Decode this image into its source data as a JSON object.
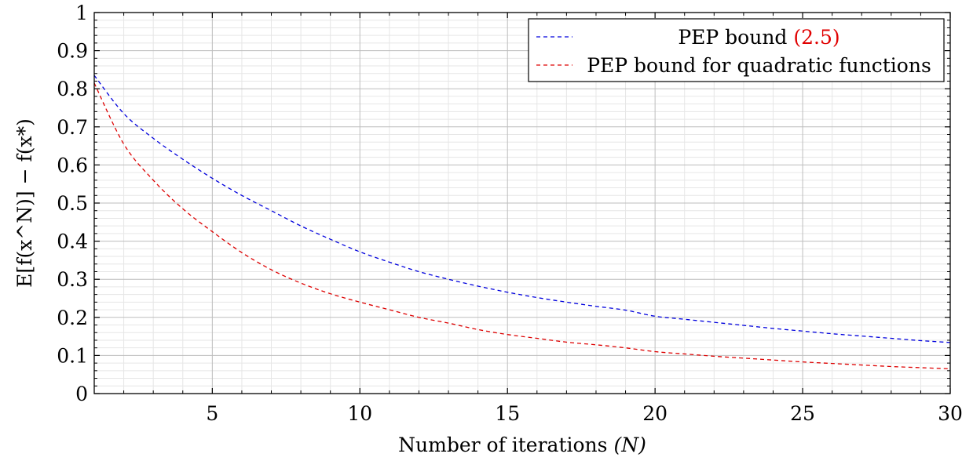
{
  "chart_data": {
    "type": "line",
    "xlabel": "Number of iterations",
    "xlabel_var": "(N)",
    "ylabel": "E[f(x^N)] − f(x*)",
    "xlim": [
      1,
      30
    ],
    "ylim": [
      0,
      1
    ],
    "x_major_ticks": [
      5,
      10,
      15,
      20,
      25,
      30
    ],
    "x_minor_ticks": [
      2,
      3,
      4,
      6,
      7,
      8,
      9,
      11,
      12,
      13,
      14,
      16,
      17,
      18,
      19,
      21,
      22,
      23,
      24,
      26,
      27,
      28,
      29
    ],
    "y_major_ticks": [
      0,
      0.1,
      0.2,
      0.3,
      0.4,
      0.5,
      0.6,
      0.7,
      0.8,
      0.9,
      1
    ],
    "y_minor_step": 0.02,
    "grid": true,
    "legend_position": "top-right",
    "x": [
      1,
      2,
      3,
      4,
      5,
      6,
      7,
      8,
      9,
      10,
      11,
      12,
      13,
      14,
      15,
      16,
      17,
      18,
      19,
      20,
      21,
      22,
      23,
      24,
      25,
      26,
      27,
      28,
      29,
      30
    ],
    "series": [
      {
        "name": "PEP bound",
        "name_ref": "(2.5)",
        "color": "#0000dd",
        "style": "dashed",
        "values": [
          0.835,
          0.735,
          0.67,
          0.615,
          0.565,
          0.52,
          0.48,
          0.44,
          0.405,
          0.372,
          0.345,
          0.32,
          0.3,
          0.282,
          0.266,
          0.252,
          0.24,
          0.229,
          0.219,
          0.203,
          0.195,
          0.187,
          0.179,
          0.171,
          0.164,
          0.157,
          0.151,
          0.145,
          0.139,
          0.134
        ]
      },
      {
        "name": "PEP bound for quadratic functions",
        "color": "#dd0000",
        "style": "dashed",
        "values": [
          0.815,
          0.655,
          0.56,
          0.485,
          0.425,
          0.37,
          0.325,
          0.29,
          0.262,
          0.24,
          0.22,
          0.2,
          0.185,
          0.168,
          0.155,
          0.145,
          0.135,
          0.128,
          0.12,
          0.11,
          0.104,
          0.098,
          0.093,
          0.088,
          0.083,
          0.079,
          0.075,
          0.071,
          0.068,
          0.065
        ]
      }
    ]
  }
}
